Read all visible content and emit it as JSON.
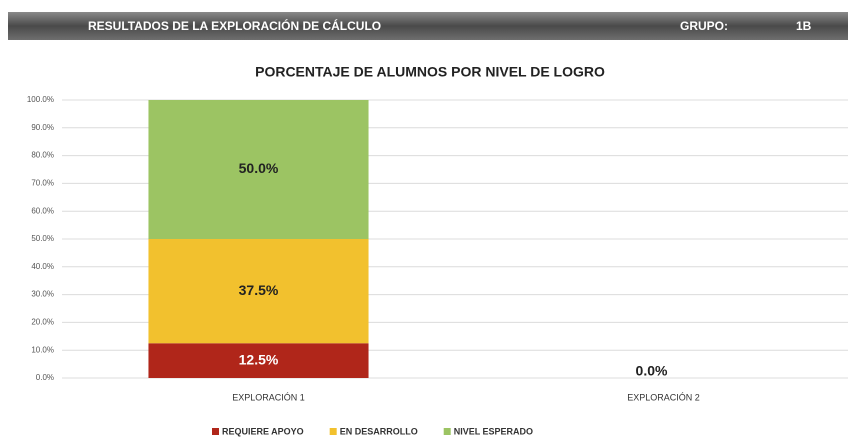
{
  "header": {
    "title": "RESULTADOS DE LA EXPLORACIÓN DE CÁLCULO",
    "group_label": "GRUPO:",
    "group": "1B"
  },
  "chart_data": {
    "type": "stacked_bar",
    "title": "PORCENTAJE DE ALUMNOS POR NIVEL DE LOGRO",
    "categories": [
      "EXPLORACIÓN 1",
      "EXPLORACIÓN 2"
    ],
    "series": [
      {
        "name": "REQUIERE APOYO",
        "color": "#b0261a",
        "values": [
          12.5,
          null
        ],
        "value_labels": [
          "12.5%",
          null
        ]
      },
      {
        "name": "EN DESARROLLO",
        "color": "#f2c12e",
        "values": [
          37.5,
          null
        ],
        "value_labels": [
          "37.5%",
          null
        ]
      },
      {
        "name": "NIVEL ESPERADO",
        "color": "#9cc463",
        "values": [
          50,
          0
        ],
        "value_labels": [
          "50.0%",
          "0.0%"
        ]
      }
    ],
    "ylim": [
      0,
      100
    ],
    "yticks": [
      {
        "value": 0,
        "label": "0.0%"
      },
      {
        "value": 10,
        "label": "10.0%"
      },
      {
        "value": 20,
        "label": "20.0%"
      },
      {
        "value": 30,
        "label": "30.0%"
      },
      {
        "value": 40,
        "label": "40.0%"
      },
      {
        "value": 50,
        "label": "50.0%"
      },
      {
        "value": 60,
        "label": "60.0%"
      },
      {
        "value": 70,
        "label": "70.0%"
      },
      {
        "value": 80,
        "label": "80.0%"
      },
      {
        "value": 90,
        "label": "90.0%"
      },
      {
        "value": 100,
        "label": "100.0%"
      }
    ],
    "grid": true,
    "legend": "bottom"
  }
}
